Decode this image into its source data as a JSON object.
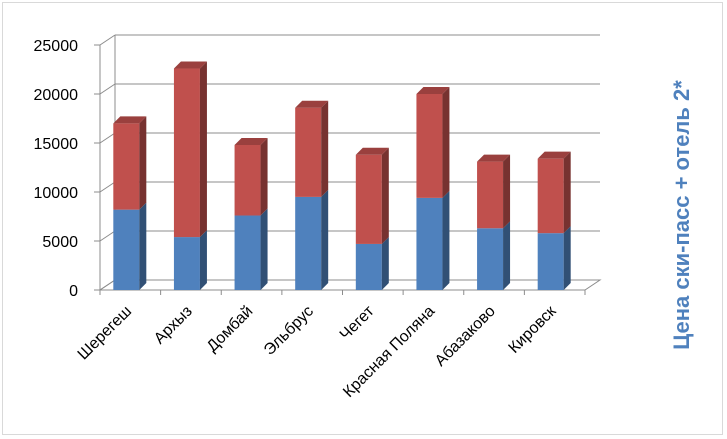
{
  "chart_data": {
    "type": "bar",
    "stacked": true,
    "three_d": true,
    "title": "",
    "ylabel": "Цена ски-пасс + отель 2*",
    "xlabel": "",
    "ylim": [
      0,
      25000
    ],
    "y_ticks": [
      "0",
      "5000",
      "10000",
      "15000",
      "20000",
      "25000"
    ],
    "grid": true,
    "legend": "none",
    "categories": [
      "Шерегеш",
      "Архыз",
      "Домбай",
      "Эльбрус",
      "Чегет",
      "Красная Поляна",
      "Абазаково",
      "Кировск"
    ],
    "series": [
      {
        "color": "#4f81bd",
        "values": [
          8200,
          5400,
          7600,
          9500,
          4700,
          9400,
          6300,
          5800
        ]
      },
      {
        "color": "#c0504d",
        "values": [
          8800,
          17200,
          7200,
          9100,
          9100,
          10600,
          6800,
          7600
        ]
      }
    ]
  }
}
